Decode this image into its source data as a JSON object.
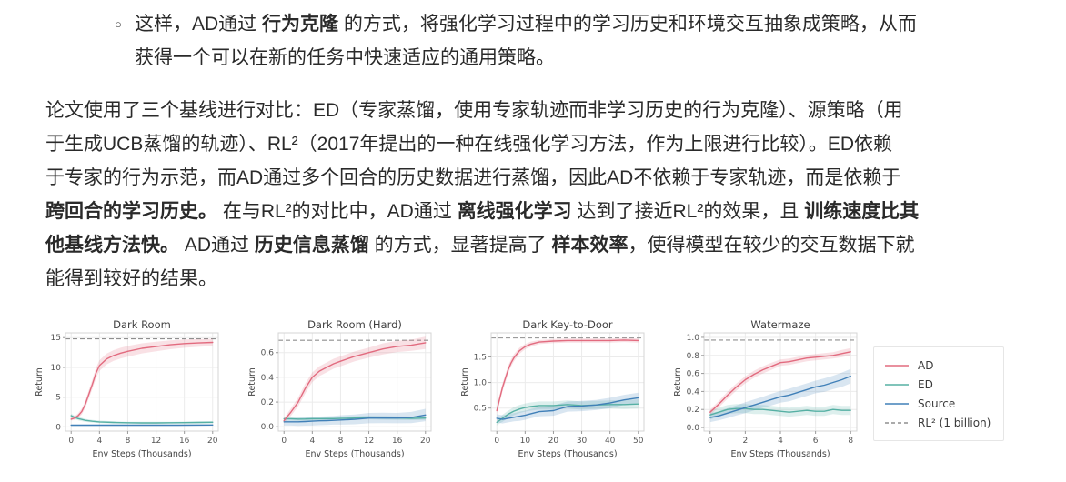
{
  "page": {
    "background": "#ffffff",
    "text_color": "#2a2a2a"
  },
  "bullet": {
    "marker": "○",
    "lines": [
      [
        {
          "t": "这样，AD通过 "
        },
        {
          "t": "行为克隆",
          "b": true
        },
        {
          "t": " 的方式，将强化学习过程中的学习历史和环境交互抽象成策略，从而"
        }
      ],
      [
        {
          "t": "获得一个可以在新的任务中快速适应的通用策略。"
        }
      ]
    ]
  },
  "paragraph": {
    "lines": [
      [
        {
          "t": "论文使用了三个基线进行对比：ED（专家蒸馏，使用专家轨迹而非学习历史的行为克隆）、源策略（用"
        }
      ],
      [
        {
          "t": "于生成UCB蒸馏的轨迹）、RL²（2017年提出的一种在线强化学习方法，作为上限进行比较）。ED依赖"
        }
      ],
      [
        {
          "t": "于专家的行为示范，而AD通过多个回合的历史数据进行蒸馏，因此AD不依赖于专家轨迹，而是依赖于"
        }
      ],
      [
        {
          "t": "跨回合的学习历史。",
          "b": true
        },
        {
          "t": " 在与RL²的对比中，AD通过 "
        },
        {
          "t": "离线强化学习",
          "b": true
        },
        {
          "t": " 达到了接近RL²的效果，且 "
        },
        {
          "t": "训练速度比其",
          "b": true
        }
      ],
      [
        {
          "t": "他基线方法快。",
          "b": true
        },
        {
          "t": " AD通过 "
        },
        {
          "t": "历史信息蒸馏",
          "b": true
        },
        {
          "t": " 的方式，显著提高了 "
        },
        {
          "t": "样本效率",
          "b": true
        },
        {
          "t": "，使得模型在较少的交互数据下就"
        }
      ],
      [
        {
          "t": "能得到较好的结果。"
        }
      ]
    ]
  },
  "colors": {
    "ad": "#e26b7f",
    "ed": "#56b0a4",
    "source": "#4180b8",
    "rl2": "#8f8f8f",
    "grid": "#ebebeb",
    "spine": "#d4d4d4",
    "tick_text": "#555555",
    "title_text": "#404040"
  },
  "legend": {
    "items": [
      {
        "label": "AD",
        "key": "ad",
        "dashed": false
      },
      {
        "label": "ED",
        "key": "ed",
        "dashed": false
      },
      {
        "label": "Source",
        "key": "source",
        "dashed": false
      },
      {
        "label": "RL² (1 billion)",
        "key": "rl2",
        "dashed": true
      }
    ]
  },
  "chart_data": [
    {
      "type": "line",
      "title": "Dark Room",
      "xlabel": "Env Steps (Thousands)",
      "ylabel": "Return",
      "xlim": [
        -0.8,
        20.8
      ],
      "ylim": [
        -0.7,
        15.8
      ],
      "xticks": [
        0,
        4,
        8,
        12,
        16,
        20
      ],
      "xtick_labels": [
        "0",
        "4",
        "8",
        "12",
        "16",
        "20"
      ],
      "yticks": [
        0,
        5,
        10,
        15
      ],
      "ytick_labels": [
        "0",
        "5",
        "10",
        "15"
      ],
      "rl2_value": 14.8,
      "series": [
        {
          "name": "ED",
          "key": "ed",
          "x": [
            0,
            0.5,
            1,
            1.5,
            2,
            3,
            4,
            6,
            8,
            10,
            12,
            14,
            16,
            18,
            20
          ],
          "y": [
            1.9,
            1.6,
            1.4,
            1.25,
            1.1,
            0.95,
            0.85,
            0.75,
            0.7,
            0.68,
            0.68,
            0.7,
            0.72,
            0.75,
            0.78
          ],
          "band": [
            0.35,
            0.3,
            0.3,
            0.28,
            0.25,
            0.22,
            0.2,
            0.18,
            0.18,
            0.18,
            0.18,
            0.18,
            0.18,
            0.18,
            0.2
          ]
        },
        {
          "name": "Source",
          "key": "source",
          "x": [
            0,
            5,
            10,
            15,
            20
          ],
          "y": [
            0.3,
            0.3,
            0.3,
            0.3,
            0.32
          ],
          "band": [
            0.12,
            0.12,
            0.12,
            0.12,
            0.12
          ]
        },
        {
          "name": "AD",
          "key": "ad",
          "x": [
            0,
            0.5,
            1,
            1.5,
            2,
            2.5,
            3,
            3.5,
            4,
            5,
            6,
            7,
            8,
            10,
            12,
            14,
            16,
            18,
            20
          ],
          "y": [
            1.3,
            1.5,
            1.9,
            2.6,
            3.8,
            5.5,
            7.2,
            9.0,
            10.3,
            11.4,
            12.0,
            12.4,
            12.7,
            13.2,
            13.5,
            13.8,
            14.0,
            14.1,
            14.2
          ],
          "band": [
            0.25,
            0.3,
            0.4,
            0.5,
            0.6,
            0.7,
            0.8,
            0.85,
            0.9,
            0.9,
            0.9,
            0.9,
            0.9,
            0.85,
            0.8,
            0.75,
            0.7,
            0.65,
            0.6
          ]
        }
      ]
    },
    {
      "type": "line",
      "title": "Dark Room (Hard)",
      "xlabel": "Env Steps (Thousands)",
      "ylabel": "Return",
      "xlim": [
        -0.8,
        20.8
      ],
      "ylim": [
        -0.035,
        0.76
      ],
      "xticks": [
        0,
        4,
        8,
        12,
        16,
        20
      ],
      "xtick_labels": [
        "0",
        "4",
        "8",
        "12",
        "16",
        "20"
      ],
      "yticks": [
        0,
        0.2,
        0.4,
        0.6
      ],
      "ytick_labels": [
        "0.0",
        "0.2",
        "0.4",
        "0.6"
      ],
      "rl2_value": 0.7,
      "series": [
        {
          "name": "ED",
          "key": "ed",
          "x": [
            0,
            1,
            2,
            3,
            4,
            5,
            6,
            7,
            8,
            10,
            12,
            14,
            16,
            18,
            20
          ],
          "y": [
            0.065,
            0.065,
            0.062,
            0.063,
            0.065,
            0.065,
            0.066,
            0.066,
            0.067,
            0.07,
            0.075,
            0.072,
            0.07,
            0.068,
            0.07
          ],
          "band": [
            0.015,
            0.015,
            0.015,
            0.015,
            0.015,
            0.015,
            0.015,
            0.015,
            0.015,
            0.015,
            0.015,
            0.015,
            0.015,
            0.015,
            0.015
          ]
        },
        {
          "name": "Source",
          "key": "source",
          "x": [
            0,
            1,
            2,
            3,
            4,
            5,
            6,
            7,
            8,
            10,
            12,
            14,
            16,
            18,
            20
          ],
          "y": [
            0.04,
            0.04,
            0.04,
            0.042,
            0.045,
            0.048,
            0.05,
            0.052,
            0.055,
            0.06,
            0.07,
            0.072,
            0.07,
            0.075,
            0.095
          ],
          "band": [
            0.03,
            0.03,
            0.032,
            0.033,
            0.035,
            0.035,
            0.035,
            0.035,
            0.038,
            0.04,
            0.042,
            0.042,
            0.042,
            0.045,
            0.05
          ]
        },
        {
          "name": "AD",
          "key": "ad",
          "x": [
            0,
            1,
            2,
            3,
            4,
            5,
            6,
            7,
            8,
            10,
            12,
            14,
            16,
            18,
            20
          ],
          "y": [
            0.05,
            0.12,
            0.2,
            0.31,
            0.4,
            0.45,
            0.48,
            0.51,
            0.53,
            0.57,
            0.6,
            0.63,
            0.65,
            0.66,
            0.68
          ],
          "band": [
            0.02,
            0.03,
            0.035,
            0.04,
            0.04,
            0.04,
            0.04,
            0.04,
            0.04,
            0.04,
            0.04,
            0.045,
            0.045,
            0.045,
            0.05
          ]
        }
      ]
    },
    {
      "type": "line",
      "title": "Dark Key-to-Door",
      "xlabel": "Env Steps (Thousands)",
      "ylabel": "Return",
      "xlim": [
        -2,
        52
      ],
      "ylim": [
        0.05,
        1.97
      ],
      "xticks": [
        0,
        10,
        20,
        30,
        40,
        50
      ],
      "xtick_labels": [
        "0",
        "10",
        "20",
        "30",
        "40",
        "50"
      ],
      "yticks": [
        0.5,
        1.0,
        1.5
      ],
      "ytick_labels": [
        "0.5",
        "1.0",
        "1.5"
      ],
      "rl2_value": 1.87,
      "series": [
        {
          "name": "ED",
          "key": "ed",
          "x": [
            0,
            1,
            2,
            3,
            4,
            5,
            6,
            8,
            10,
            12,
            15,
            20,
            25,
            30,
            35,
            40,
            45,
            50
          ],
          "y": [
            0.22,
            0.26,
            0.3,
            0.34,
            0.38,
            0.41,
            0.44,
            0.48,
            0.51,
            0.53,
            0.55,
            0.55,
            0.57,
            0.55,
            0.56,
            0.57,
            0.57,
            0.58
          ],
          "band": [
            0.06,
            0.06,
            0.07,
            0.07,
            0.07,
            0.07,
            0.08,
            0.08,
            0.08,
            0.08,
            0.08,
            0.08,
            0.08,
            0.08,
            0.08,
            0.08,
            0.09,
            0.09
          ]
        },
        {
          "name": "Source",
          "key": "source",
          "x": [
            0,
            1,
            2,
            3,
            4,
            5,
            6,
            8,
            10,
            12,
            15,
            20,
            25,
            30,
            35,
            40,
            45,
            50
          ],
          "y": [
            0.3,
            0.29,
            0.28,
            0.29,
            0.3,
            0.31,
            0.32,
            0.34,
            0.36,
            0.39,
            0.43,
            0.45,
            0.53,
            0.54,
            0.56,
            0.6,
            0.66,
            0.7
          ],
          "band": [
            0.08,
            0.08,
            0.08,
            0.08,
            0.08,
            0.08,
            0.08,
            0.09,
            0.09,
            0.09,
            0.09,
            0.1,
            0.1,
            0.1,
            0.1,
            0.1,
            0.1,
            0.1
          ]
        },
        {
          "name": "AD",
          "key": "ad",
          "x": [
            0,
            1,
            2,
            3,
            4,
            5,
            6,
            8,
            10,
            12,
            15,
            20,
            25,
            30,
            35,
            40,
            45,
            50
          ],
          "y": [
            0.45,
            0.68,
            0.9,
            1.08,
            1.25,
            1.38,
            1.48,
            1.62,
            1.7,
            1.75,
            1.79,
            1.81,
            1.82,
            1.82,
            1.82,
            1.82,
            1.83,
            1.82
          ],
          "band": [
            0.07,
            0.08,
            0.08,
            0.08,
            0.08,
            0.07,
            0.07,
            0.06,
            0.05,
            0.05,
            0.04,
            0.04,
            0.04,
            0.04,
            0.04,
            0.04,
            0.04,
            0.04
          ]
        }
      ]
    },
    {
      "type": "line",
      "title": "Watermaze",
      "xlabel": "Env Steps (Thousands)",
      "ylabel": "Return",
      "xlim": [
        -0.35,
        8.35
      ],
      "ylim": [
        -0.04,
        1.05
      ],
      "xticks": [
        0,
        2,
        4,
        6,
        8
      ],
      "xtick_labels": [
        "0",
        "2",
        "4",
        "6",
        "8"
      ],
      "yticks": [
        0,
        0.2,
        0.4,
        0.6,
        0.8,
        1.0
      ],
      "ytick_labels": [
        "0.0",
        "0.2",
        "0.4",
        "0.6",
        "0.8",
        "1.0"
      ],
      "rl2_value": 0.97,
      "series": [
        {
          "name": "ED",
          "key": "ed",
          "x": [
            0,
            0.5,
            1,
            1.5,
            2,
            2.5,
            3,
            3.5,
            4,
            4.5,
            5,
            5.5,
            6,
            6.5,
            7,
            7.5,
            8
          ],
          "y": [
            0.14,
            0.17,
            0.2,
            0.21,
            0.21,
            0.2,
            0.2,
            0.19,
            0.18,
            0.17,
            0.18,
            0.19,
            0.18,
            0.18,
            0.2,
            0.19,
            0.19
          ],
          "band": [
            0.05,
            0.05,
            0.05,
            0.05,
            0.05,
            0.05,
            0.05,
            0.05,
            0.05,
            0.05,
            0.05,
            0.05,
            0.05,
            0.05,
            0.05,
            0.05,
            0.05
          ]
        },
        {
          "name": "Source",
          "key": "source",
          "x": [
            0,
            0.5,
            1,
            1.5,
            2,
            2.5,
            3,
            3.5,
            4,
            4.5,
            5,
            5.5,
            6,
            6.5,
            7,
            7.5,
            8
          ],
          "y": [
            0.11,
            0.13,
            0.16,
            0.19,
            0.22,
            0.25,
            0.28,
            0.31,
            0.34,
            0.36,
            0.39,
            0.42,
            0.45,
            0.47,
            0.5,
            0.53,
            0.57
          ],
          "band": [
            0.05,
            0.05,
            0.055,
            0.055,
            0.06,
            0.06,
            0.06,
            0.065,
            0.065,
            0.07,
            0.07,
            0.07,
            0.07,
            0.075,
            0.075,
            0.08,
            0.08
          ]
        },
        {
          "name": "AD",
          "key": "ad",
          "x": [
            0,
            0.5,
            1,
            1.5,
            2,
            2.5,
            3,
            3.5,
            4,
            4.5,
            5,
            5.5,
            6,
            6.5,
            7,
            7.5,
            8
          ],
          "y": [
            0.17,
            0.26,
            0.36,
            0.45,
            0.53,
            0.59,
            0.64,
            0.68,
            0.72,
            0.73,
            0.75,
            0.77,
            0.78,
            0.79,
            0.8,
            0.82,
            0.84
          ],
          "band": [
            0.03,
            0.035,
            0.04,
            0.04,
            0.04,
            0.04,
            0.04,
            0.04,
            0.035,
            0.035,
            0.035,
            0.035,
            0.035,
            0.035,
            0.035,
            0.04,
            0.04
          ]
        }
      ]
    }
  ]
}
